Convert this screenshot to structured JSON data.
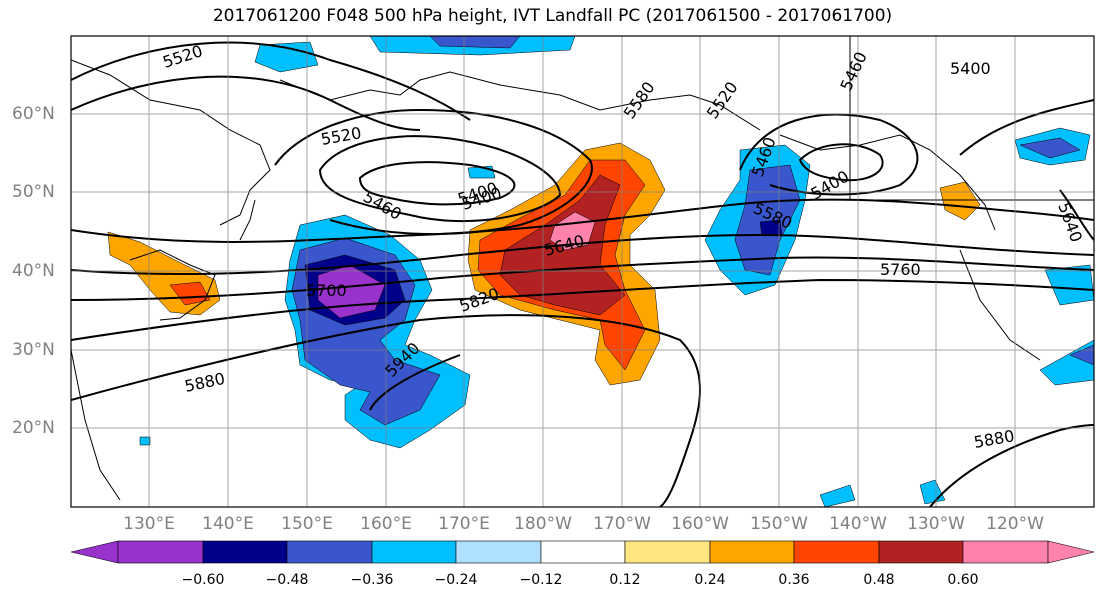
{
  "title": "2017061200 F048 500 hPa height, IVT Landfall PC (2017061500 - 2017061700)",
  "lat_labels": [
    "60°N",
    "50°N",
    "40°N",
    "30°N",
    "20°N"
  ],
  "lon_labels": [
    "130°E",
    "140°E",
    "150°E",
    "160°E",
    "170°E",
    "180°W",
    "170°W",
    "160°W",
    "150°W",
    "140°W",
    "130°W",
    "120°W"
  ],
  "contour_labels": [
    "5520",
    "5520",
    "5400",
    "5460",
    "5400",
    "5580",
    "5520",
    "5460",
    "5460",
    "5400",
    "5400",
    "5580",
    "5640",
    "5640",
    "5760",
    "5700",
    "5820",
    "5880",
    "5940",
    "5880"
  ],
  "colorbar": {
    "ticks": [
      "−0.60",
      "−0.48",
      "−0.36",
      "−0.24",
      "−0.12",
      "0.12",
      "0.24",
      "0.36",
      "0.48",
      "0.60"
    ],
    "colors": [
      "#9932cc",
      "#00008b",
      "#3a56cc",
      "#00bfff",
      "#b0e0ff",
      "#ffffff",
      "#ffe680",
      "#ffa500",
      "#ff4500",
      "#b22222",
      "#ff82ab"
    ]
  }
}
